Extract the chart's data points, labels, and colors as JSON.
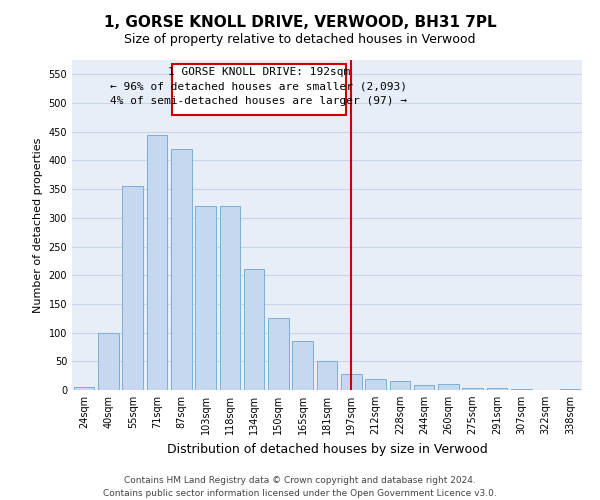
{
  "title": "1, GORSE KNOLL DRIVE, VERWOOD, BH31 7PL",
  "subtitle": "Size of property relative to detached houses in Verwood",
  "xlabel": "Distribution of detached houses by size in Verwood",
  "ylabel": "Number of detached properties",
  "categories": [
    "24sqm",
    "40sqm",
    "55sqm",
    "71sqm",
    "87sqm",
    "103sqm",
    "118sqm",
    "134sqm",
    "150sqm",
    "165sqm",
    "181sqm",
    "197sqm",
    "212sqm",
    "228sqm",
    "244sqm",
    "260sqm",
    "275sqm",
    "291sqm",
    "307sqm",
    "322sqm",
    "338sqm"
  ],
  "bar_heights": [
    5,
    100,
    355,
    445,
    420,
    320,
    320,
    210,
    125,
    85,
    50,
    28,
    20,
    15,
    8,
    10,
    3,
    3,
    2,
    0,
    2
  ],
  "bar_color": "#c5d8f0",
  "bar_edge_color": "#7bafd4",
  "grid_color": "#c8d4e8",
  "background_color": "#e8eef8",
  "vline_x_idx": 11,
  "vline_color": "#cc0000",
  "annotation_line1": "1 GORSE KNOLL DRIVE: 192sqm",
  "annotation_line2": "← 96% of detached houses are smaller (2,093)",
  "annotation_line3": "4% of semi-detached houses are larger (97) →",
  "annotation_box_color": "#cc0000",
  "ylim": [
    0,
    575
  ],
  "yticks": [
    0,
    50,
    100,
    150,
    200,
    250,
    300,
    350,
    400,
    450,
    500,
    550
  ],
  "footer_text": "Contains HM Land Registry data © Crown copyright and database right 2024.\nContains public sector information licensed under the Open Government Licence v3.0.",
  "title_fontsize": 11,
  "subtitle_fontsize": 9,
  "xlabel_fontsize": 9,
  "ylabel_fontsize": 8,
  "tick_fontsize": 7,
  "annotation_fontsize": 8,
  "footer_fontsize": 6.5
}
